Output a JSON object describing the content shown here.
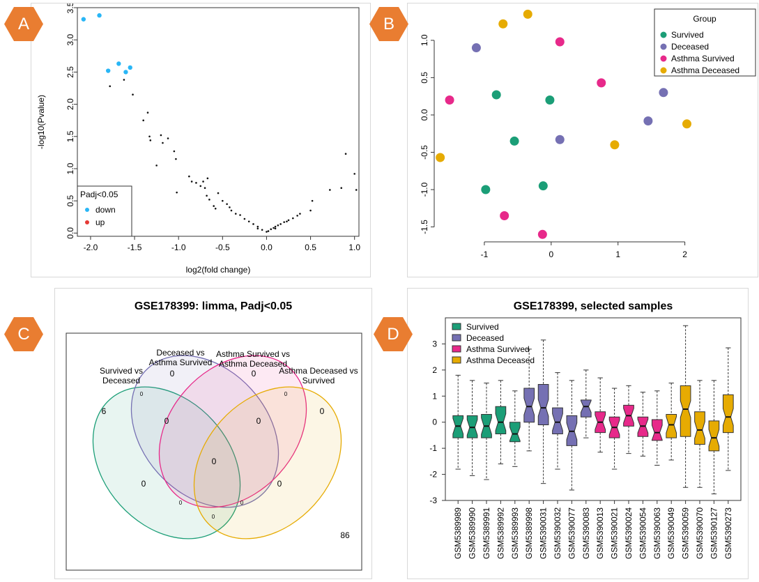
{
  "badges": {
    "a": "A",
    "b": "B",
    "c": "C",
    "d": "D"
  },
  "colors": {
    "survived": "#1b9e77",
    "deceased": "#7570b3",
    "asthma_survived": "#e7298a",
    "asthma_deceased": "#e6ab02",
    "down": "#29b6f6",
    "up": "#e53935",
    "badge": "#e97d31"
  },
  "chart_data": [
    {
      "panel": "A",
      "type": "scatter",
      "title": "",
      "xlabel": "log2(fold change)",
      "ylabel": "-log10(Pvalue)",
      "xlim": [
        -2.15,
        1.05
      ],
      "ylim": [
        -0.05,
        3.5
      ],
      "xticks": [
        "-2.0",
        "-1.5",
        "-1.0",
        "-0.5",
        "0.0",
        "0.5",
        "1.0"
      ],
      "yticks": [
        "0.0",
        "0.5",
        "1.0",
        "1.5",
        "2.0",
        "2.5",
        "3.0",
        "3.5"
      ],
      "legend": {
        "title": "Padj<0.05",
        "position": "bottom-left",
        "entries": [
          {
            "label": "down",
            "color": "#29b6f6"
          },
          {
            "label": "up",
            "color": "#e53935"
          }
        ]
      },
      "series": [
        {
          "name": "down",
          "points": [
            [
              -2.08,
              3.32
            ],
            [
              -1.9,
              3.38
            ],
            [
              -1.8,
              2.52
            ],
            [
              -1.68,
              2.63
            ],
            [
              -1.6,
              2.5
            ],
            [
              -1.55,
              2.57
            ]
          ]
        },
        {
          "name": "",
          "points": [
            [
              -1.78,
              2.28
            ],
            [
              -1.62,
              2.38
            ],
            [
              -1.52,
              2.15
            ],
            [
              -1.4,
              1.75
            ],
            [
              -1.35,
              1.87
            ],
            [
              -1.33,
              1.5
            ],
            [
              -1.32,
              1.44
            ],
            [
              -1.2,
              1.52
            ],
            [
              -1.18,
              1.4
            ],
            [
              -1.12,
              1.47
            ],
            [
              -1.25,
              1.05
            ],
            [
              -1.05,
              1.27
            ],
            [
              -1.03,
              1.15
            ],
            [
              -1.02,
              0.63
            ],
            [
              -0.88,
              0.88
            ],
            [
              -0.85,
              0.8
            ],
            [
              -0.8,
              0.78
            ],
            [
              -0.72,
              0.8
            ],
            [
              -0.7,
              0.7
            ],
            [
              -0.68,
              0.58
            ],
            [
              -0.67,
              0.85
            ],
            [
              -0.65,
              0.52
            ],
            [
              -0.55,
              0.62
            ],
            [
              -0.5,
              0.5
            ],
            [
              -0.45,
              0.45
            ],
            [
              -0.42,
              0.4
            ],
            [
              -0.4,
              0.35
            ],
            [
              -0.35,
              0.3
            ],
            [
              -0.3,
              0.28
            ],
            [
              -0.25,
              0.22
            ],
            [
              -0.2,
              0.18
            ],
            [
              -0.15,
              0.14
            ],
            [
              -0.1,
              0.1
            ],
            [
              -0.05,
              0.05
            ],
            [
              0.0,
              0.02
            ],
            [
              0.02,
              0.03
            ],
            [
              0.05,
              0.06
            ],
            [
              0.08,
              0.08
            ],
            [
              0.1,
              0.1
            ],
            [
              0.13,
              0.12
            ],
            [
              0.16,
              0.14
            ],
            [
              0.2,
              0.17
            ],
            [
              0.23,
              0.18
            ],
            [
              0.25,
              0.2
            ],
            [
              0.3,
              0.23
            ],
            [
              0.35,
              0.27
            ],
            [
              0.38,
              0.3
            ],
            [
              0.5,
              0.35
            ],
            [
              0.52,
              0.5
            ],
            [
              0.72,
              0.67
            ],
            [
              0.85,
              0.7
            ],
            [
              0.9,
              1.23
            ],
            [
              1.0,
              0.92
            ],
            [
              1.02,
              0.67
            ],
            [
              -0.6,
              0.42
            ],
            [
              -0.58,
              0.38
            ],
            [
              -0.75,
              0.73
            ],
            [
              -0.1,
              0.07
            ],
            [
              0.1,
              0.07
            ]
          ]
        }
      ]
    },
    {
      "panel": "B",
      "type": "scatter",
      "title": "",
      "xlabel": "",
      "ylabel": "",
      "xlim": [
        -1.75,
        2.15
      ],
      "ylim": [
        -1.7,
        1.4
      ],
      "xticks": [
        "-1",
        "0",
        "1",
        "2"
      ],
      "yticks": [
        "1.0",
        "0.5",
        "0.0",
        "-0.5",
        "-1.0",
        "-1.5"
      ],
      "legend": {
        "title": "Group",
        "position": "top-right",
        "entries": [
          {
            "label": "Survived",
            "color": "#1b9e77"
          },
          {
            "label": "Deceased",
            "color": "#7570b3"
          },
          {
            "label": "Asthma Survived",
            "color": "#e7298a"
          },
          {
            "label": "Asthma Deceased",
            "color": "#e6ab02"
          }
        ]
      },
      "series": [
        {
          "name": "Survived",
          "points": [
            [
              -0.82,
              0.27
            ],
            [
              -0.02,
              0.2
            ],
            [
              -0.55,
              -0.35
            ],
            [
              -0.98,
              -1.0
            ],
            [
              -0.12,
              -0.95
            ]
          ]
        },
        {
          "name": "Deceased",
          "points": [
            [
              -1.12,
              0.9
            ],
            [
              1.65,
              0.8
            ],
            [
              1.68,
              0.3
            ],
            [
              1.45,
              -0.08
            ],
            [
              0.13,
              -0.33
            ]
          ]
        },
        {
          "name": "Asthma Survived",
          "points": [
            [
              -1.52,
              0.2
            ],
            [
              0.13,
              0.98
            ],
            [
              0.75,
              0.43
            ],
            [
              -0.7,
              -1.35
            ],
            [
              -0.13,
              -1.6
            ]
          ]
        },
        {
          "name": "Asthma Deceased",
          "points": [
            [
              -0.72,
              1.22
            ],
            [
              -0.35,
              1.35
            ],
            [
              -1.66,
              -0.57
            ],
            [
              0.95,
              -0.4
            ],
            [
              2.03,
              -0.12
            ]
          ]
        }
      ]
    },
    {
      "panel": "C",
      "type": "venn",
      "title": "GSE178399: limma, Padj<0.05",
      "sets": [
        {
          "label_line1": "Survived vs",
          "label_line2": "Deceased",
          "color": "#1b9e77"
        },
        {
          "label_line1": "Deceased vs",
          "label_line2": "Asthma Survived",
          "color": "#7570b3"
        },
        {
          "label_line1": "Asthma Survived vs",
          "label_line2": "Asthma Deceased",
          "color": "#e7298a"
        },
        {
          "label_line1": "Asthma Deceased vs",
          "label_line2": "Survived",
          "color": "#e6ab02"
        }
      ],
      "regions": {
        "only_1": "6",
        "only_2": "0",
        "only_3": "0",
        "only_4": "0",
        "r12": "0",
        "r34": "0",
        "r13": "0",
        "r24": "0",
        "r23": "0",
        "r14": "0",
        "r123": "0",
        "r234": "0",
        "r124": "0",
        "r134": "0",
        "r1234": "0",
        "outside": "86"
      }
    },
    {
      "panel": "D",
      "type": "boxplot",
      "title": "GSE178399, selected samples",
      "xlabel": "",
      "ylabel": "",
      "ylim": [
        -3,
        4
      ],
      "yticks": [
        "3",
        "2",
        "1",
        "0",
        "-1",
        "-2",
        "-3"
      ],
      "legend": {
        "position": "top-left",
        "entries": [
          {
            "label": "Survived",
            "color": "#1b9e77"
          },
          {
            "label": "Deceased",
            "color": "#7570b3"
          },
          {
            "label": "Asthma Survived",
            "color": "#e7298a"
          },
          {
            "label": "Asthma Deceased",
            "color": "#e6ab02"
          }
        ]
      },
      "boxes": [
        {
          "label": "GSM5389989",
          "group": "Survived",
          "min": -1.8,
          "q1": -0.6,
          "median": -0.15,
          "q3": 0.25,
          "max": 1.8
        },
        {
          "label": "GSM5389990",
          "group": "Survived",
          "min": -2.05,
          "q1": -0.6,
          "median": -0.2,
          "q3": 0.25,
          "max": 1.6
        },
        {
          "label": "GSM5389991",
          "group": "Survived",
          "min": -2.2,
          "q1": -0.6,
          "median": -0.15,
          "q3": 0.3,
          "max": 1.5
        },
        {
          "label": "GSM5389992",
          "group": "Survived",
          "min": -1.6,
          "q1": -0.45,
          "median": 0.0,
          "q3": 0.6,
          "max": 1.6
        },
        {
          "label": "GSM5389993",
          "group": "Survived",
          "min": -1.7,
          "q1": -0.75,
          "median": -0.45,
          "q3": 0.0,
          "max": 1.2
        },
        {
          "label": "GSM5389998",
          "group": "Deceased",
          "min": -1.1,
          "q1": -0.0,
          "median": 0.6,
          "q3": 1.3,
          "max": 2.8
        },
        {
          "label": "GSM5390031",
          "group": "Deceased",
          "min": -2.35,
          "q1": -0.1,
          "median": 0.55,
          "q3": 1.45,
          "max": 3.15
        },
        {
          "label": "GSM5390032",
          "group": "Deceased",
          "min": -1.8,
          "q1": -0.45,
          "median": 0.0,
          "q3": 0.55,
          "max": 1.9
        },
        {
          "label": "GSM5390077",
          "group": "Deceased",
          "min": -2.6,
          "q1": -0.9,
          "median": -0.35,
          "q3": 0.25,
          "max": 1.6
        },
        {
          "label": "GSM5390083",
          "group": "Deceased",
          "min": -0.6,
          "q1": 0.2,
          "median": 0.6,
          "q3": 0.85,
          "max": 2.0
        },
        {
          "label": "GSM5390013",
          "group": "Asthma Survived",
          "min": -1.15,
          "q1": -0.4,
          "median": 0.0,
          "q3": 0.4,
          "max": 1.7
        },
        {
          "label": "GSM5390021",
          "group": "Asthma Survived",
          "min": -1.8,
          "q1": -0.6,
          "median": -0.2,
          "q3": 0.2,
          "max": 1.3
        },
        {
          "label": "GSM5390024",
          "group": "Asthma Survived",
          "min": -1.2,
          "q1": -0.15,
          "median": 0.25,
          "q3": 0.65,
          "max": 1.4
        },
        {
          "label": "GSM5390054",
          "group": "Asthma Survived",
          "min": -1.3,
          "q1": -0.55,
          "median": -0.15,
          "q3": 0.2,
          "max": 1.15
        },
        {
          "label": "GSM5390063",
          "group": "Asthma Survived",
          "min": -1.65,
          "q1": -0.7,
          "median": -0.4,
          "q3": 0.1,
          "max": 1.2
        },
        {
          "label": "GSM5390049",
          "group": "Asthma Deceased",
          "min": -1.45,
          "q1": -0.6,
          "median": -0.1,
          "q3": 0.3,
          "max": 1.5
        },
        {
          "label": "GSM5390059",
          "group": "Asthma Deceased",
          "min": -2.5,
          "q1": -0.55,
          "median": 0.5,
          "q3": 1.4,
          "max": 3.7
        },
        {
          "label": "GSM5390070",
          "group": "Asthma Deceased",
          "min": -2.5,
          "q1": -0.85,
          "median": -0.3,
          "q3": 0.4,
          "max": 1.6
        },
        {
          "label": "GSM5390127",
          "group": "Asthma Deceased",
          "min": -2.75,
          "q1": -1.1,
          "median": -0.6,
          "q3": 0.05,
          "max": 1.6
        },
        {
          "label": "GSM5390273",
          "group": "Asthma Deceased",
          "min": -1.85,
          "q1": -0.4,
          "median": 0.2,
          "q3": 1.05,
          "max": 2.85
        }
      ]
    }
  ]
}
